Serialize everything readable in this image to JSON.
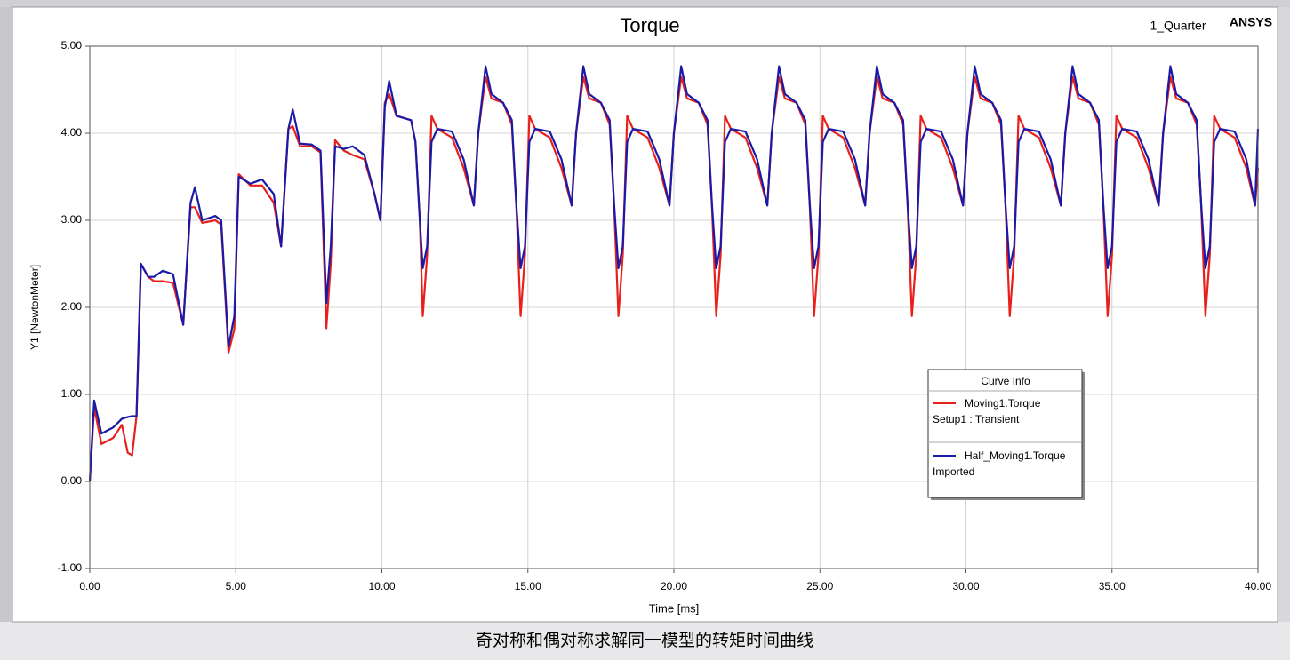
{
  "chart_data": {
    "type": "line",
    "title": "Torque",
    "subtitle": "1_Quarter",
    "brand": "ANSYS",
    "x_label": "Time [ms]",
    "y_label": "Y1 [NewtonMeter]",
    "legend_title": "Curve Info",
    "caption": "奇对称和偶对称求解同一模型的转矩时间曲线",
    "grid": true,
    "legend": "lower right",
    "xlim": [
      0,
      40
    ],
    "ylim": [
      -1,
      5
    ],
    "xticks": [
      {
        "value": 0,
        "label": "0.00"
      },
      {
        "value": 5,
        "label": "5.00"
      },
      {
        "value": 10,
        "label": "10.00"
      },
      {
        "value": 15,
        "label": "15.00"
      },
      {
        "value": 20,
        "label": "20.00"
      },
      {
        "value": 25,
        "label": "25.00"
      },
      {
        "value": 30,
        "label": "30.00"
      },
      {
        "value": 35,
        "label": "35.00"
      },
      {
        "value": 40,
        "label": "40.00"
      }
    ],
    "yticks": [
      {
        "value": -1,
        "label": "-1.00"
      },
      {
        "value": 0,
        "label": "0.00"
      },
      {
        "value": 1,
        "label": "1.00"
      },
      {
        "value": 2,
        "label": "2.00"
      },
      {
        "value": 3,
        "label": "3.00"
      },
      {
        "value": 4,
        "label": "4.00"
      },
      {
        "value": 5,
        "label": "5.00"
      }
    ],
    "x": [
      0,
      0.15,
      0.4,
      0.8,
      1.1,
      1.3,
      1.45,
      1.6,
      1.75,
      2.0,
      2.2,
      2.5,
      2.85,
      3.2,
      3.45,
      3.6,
      3.85,
      4.3,
      4.5,
      4.75,
      4.95,
      5.1,
      5.5,
      5.9,
      6.3,
      6.55,
      6.8,
      6.95,
      7.2,
      7.6,
      7.9,
      8.1,
      8.25,
      8.4,
      8.7,
      9.0,
      9.4,
      9.75,
      9.95,
      10.1,
      10.25,
      10.5,
      11.0,
      11.15,
      11.3,
      11.4,
      11.55,
      11.7,
      11.9,
      12.4,
      12.8,
      13.15,
      13.3,
      13.55,
      13.75,
      14.15,
      14.45,
      14.6,
      14.75,
      14.9,
      15.05,
      15.25,
      15.75,
      16.15,
      16.5,
      16.65,
      16.9,
      17.1,
      17.5,
      17.8,
      17.95,
      18.1,
      18.25,
      18.4,
      18.6,
      19.1,
      19.5,
      19.85,
      20.0,
      20.25,
      20.45,
      20.85,
      21.15,
      21.3,
      21.45,
      21.6,
      21.75,
      21.95,
      22.45,
      22.85,
      23.2,
      23.35,
      23.6,
      23.8,
      24.2,
      24.5,
      24.65,
      24.8,
      24.95,
      25.1,
      25.3,
      25.8,
      26.2,
      26.55,
      26.7,
      26.95,
      27.15,
      27.55,
      27.85,
      28.0,
      28.15,
      28.3,
      28.45,
      28.65,
      29.15,
      29.55,
      29.9,
      30.05,
      30.3,
      30.5,
      30.9,
      31.2,
      31.35,
      31.5,
      31.65,
      31.8,
      32.0,
      32.5,
      32.9,
      33.25,
      33.4,
      33.65,
      33.85,
      34.25,
      34.55,
      34.7,
      34.85,
      35.0,
      35.15,
      35.35,
      35.85,
      36.25,
      36.6,
      36.75,
      37.0,
      37.2,
      37.6,
      37.9,
      38.05,
      38.2,
      38.35,
      38.5,
      38.7,
      39.2,
      39.6,
      39.9,
      40.0
    ],
    "series": [
      {
        "name": "Moving1.Torque",
        "source": "Setup1 : Transient",
        "color": "#e8201c",
        "values": [
          0,
          0.85,
          0.43,
          0.5,
          0.65,
          0.33,
          0.3,
          0.75,
          2.5,
          2.35,
          2.3,
          2.3,
          2.28,
          1.8,
          3.15,
          3.15,
          2.97,
          3.0,
          2.95,
          1.48,
          1.75,
          3.53,
          3.4,
          3.4,
          3.2,
          2.7,
          4.05,
          4.08,
          3.85,
          3.85,
          3.78,
          1.76,
          2.5,
          3.92,
          3.8,
          3.75,
          3.7,
          3.3,
          3.0,
          4.35,
          4.45,
          4.2,
          4.15,
          3.9,
          3.0,
          1.9,
          2.6,
          4.2,
          4.05,
          3.95,
          3.6,
          3.17,
          4.0,
          4.65,
          4.4,
          4.35,
          4.1,
          3.2,
          1.9,
          2.6,
          4.2,
          4.05,
          3.95,
          3.6,
          3.17,
          4.0,
          4.65,
          4.4,
          4.35,
          4.1,
          3.2,
          1.9,
          2.6,
          4.2,
          4.05,
          3.95,
          3.6,
          3.17,
          4.0,
          4.65,
          4.4,
          4.35,
          4.1,
          3.2,
          1.9,
          2.6,
          4.2,
          4.05,
          3.95,
          3.6,
          3.17,
          4.0,
          4.65,
          4.4,
          4.35,
          4.1,
          3.2,
          1.9,
          2.6,
          4.2,
          4.05,
          3.95,
          3.6,
          3.17,
          4.0,
          4.65,
          4.4,
          4.35,
          4.1,
          3.2,
          1.9,
          2.6,
          4.2,
          4.05,
          3.95,
          3.6,
          3.17,
          4.0,
          4.65,
          4.4,
          4.35,
          4.1,
          3.2,
          1.9,
          2.6,
          4.2,
          4.05,
          3.95,
          3.6,
          3.17,
          4.0,
          4.65,
          4.4,
          4.35,
          4.1,
          3.2,
          1.9,
          2.6,
          4.2,
          4.05,
          3.95,
          3.6,
          3.17,
          4.0,
          4.65,
          4.4,
          4.35,
          4.1,
          3.2,
          1.9,
          2.6,
          4.2,
          4.05,
          3.95,
          3.6,
          3.17,
          3.6
        ]
      },
      {
        "name": "Half_Moving1.Torque",
        "source": "Imported",
        "color": "#1a1aa8",
        "values": [
          0,
          0.93,
          0.55,
          0.62,
          0.72,
          0.74,
          0.75,
          0.75,
          2.5,
          2.35,
          2.35,
          2.42,
          2.38,
          1.8,
          3.2,
          3.38,
          3.0,
          3.05,
          3.0,
          1.55,
          1.9,
          3.5,
          3.42,
          3.47,
          3.3,
          2.7,
          4.05,
          4.27,
          3.88,
          3.87,
          3.8,
          2.05,
          2.7,
          3.85,
          3.82,
          3.85,
          3.75,
          3.3,
          3.0,
          4.3,
          4.6,
          4.2,
          4.15,
          3.9,
          3.0,
          2.45,
          2.7,
          3.9,
          4.05,
          4.02,
          3.7,
          3.17,
          4.0,
          4.77,
          4.45,
          4.35,
          4.15,
          3.2,
          2.45,
          2.7,
          3.9,
          4.05,
          4.02,
          3.7,
          3.17,
          4.0,
          4.77,
          4.45,
          4.35,
          4.15,
          3.2,
          2.45,
          2.7,
          3.9,
          4.05,
          4.02,
          3.7,
          3.17,
          4.0,
          4.77,
          4.45,
          4.35,
          4.15,
          3.2,
          2.45,
          2.7,
          3.9,
          4.05,
          4.02,
          3.7,
          3.17,
          4.0,
          4.77,
          4.45,
          4.35,
          4.15,
          3.2,
          2.45,
          2.7,
          3.9,
          4.05,
          4.02,
          3.7,
          3.17,
          4.0,
          4.77,
          4.45,
          4.35,
          4.15,
          3.2,
          2.45,
          2.7,
          3.9,
          4.05,
          4.02,
          3.7,
          3.17,
          4.0,
          4.77,
          4.45,
          4.35,
          4.15,
          3.2,
          2.45,
          2.7,
          3.9,
          4.05,
          4.02,
          3.7,
          3.17,
          4.0,
          4.77,
          4.45,
          4.35,
          4.15,
          3.2,
          2.45,
          2.7,
          3.9,
          4.05,
          4.02,
          3.7,
          3.17,
          4.0,
          4.77,
          4.45,
          4.35,
          4.15,
          3.2,
          2.45,
          2.7,
          3.9,
          4.05,
          4.02,
          3.7,
          3.17,
          4.05
        ]
      }
    ]
  }
}
